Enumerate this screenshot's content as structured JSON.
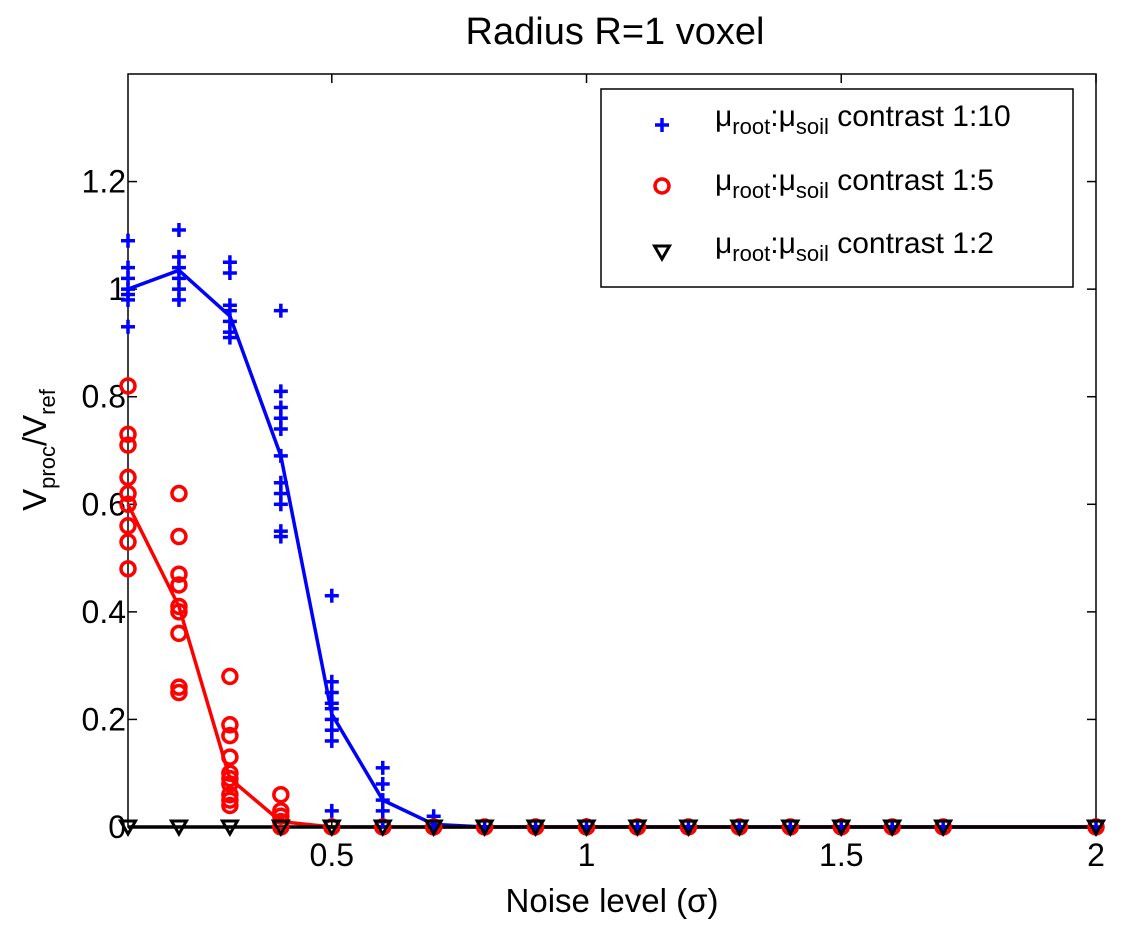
{
  "chart_data": {
    "type": "scatter",
    "title": "Radius R=1 voxel",
    "xlabel": "Noise level (σ)",
    "ylabel": {
      "v1": "V",
      "v1_sub": "proc",
      "sep": "/",
      "v2": "V",
      "v2_sub": "ref"
    },
    "xlim": [
      0.1,
      2.0
    ],
    "ylim": [
      0,
      1.4
    ],
    "xticks": [
      0.5,
      1,
      1.5,
      2
    ],
    "xtick_labels": [
      "0.5",
      "1",
      "1.5",
      "2"
    ],
    "yticks": [
      0,
      0.2,
      0.4,
      0.6,
      0.8,
      1,
      1.2
    ],
    "ytick_labels": [
      "0",
      "0.2",
      "0.4",
      "0.6",
      "0.8",
      "1",
      "1.2"
    ],
    "grid": false,
    "legend_position": "top-right",
    "series": [
      {
        "name": "μroot:μsoil contrast 1:10",
        "legend": {
          "mu1": "μ",
          "sub1": "root",
          "sep": ":",
          "mu2": "μ",
          "sub2": "soil",
          "rest": " contrast 1:10"
        },
        "marker": "plus",
        "color": "#0000ff",
        "points": [
          [
            0.1,
            1.09
          ],
          [
            0.1,
            1.04
          ],
          [
            0.1,
            1.02
          ],
          [
            0.1,
            1.0
          ],
          [
            0.1,
            0.99
          ],
          [
            0.1,
            0.98
          ],
          [
            0.1,
            0.93
          ],
          [
            0.2,
            1.11
          ],
          [
            0.2,
            1.06
          ],
          [
            0.2,
            1.04
          ],
          [
            0.2,
            1.02
          ],
          [
            0.2,
            1.0
          ],
          [
            0.2,
            0.98
          ],
          [
            0.3,
            1.05
          ],
          [
            0.3,
            1.03
          ],
          [
            0.3,
            0.97
          ],
          [
            0.3,
            0.96
          ],
          [
            0.3,
            0.94
          ],
          [
            0.3,
            0.92
          ],
          [
            0.3,
            0.91
          ],
          [
            0.4,
            0.96
          ],
          [
            0.4,
            0.81
          ],
          [
            0.4,
            0.78
          ],
          [
            0.4,
            0.76
          ],
          [
            0.4,
            0.74
          ],
          [
            0.4,
            0.69
          ],
          [
            0.4,
            0.64
          ],
          [
            0.4,
            0.62
          ],
          [
            0.4,
            0.6
          ],
          [
            0.4,
            0.55
          ],
          [
            0.4,
            0.54
          ],
          [
            0.5,
            0.43
          ],
          [
            0.5,
            0.27
          ],
          [
            0.5,
            0.25
          ],
          [
            0.5,
            0.23
          ],
          [
            0.5,
            0.22
          ],
          [
            0.5,
            0.2
          ],
          [
            0.5,
            0.18
          ],
          [
            0.5,
            0.16
          ],
          [
            0.5,
            0.03
          ],
          [
            0.6,
            0.11
          ],
          [
            0.6,
            0.08
          ],
          [
            0.6,
            0.05
          ],
          [
            0.6,
            0.03
          ],
          [
            0.6,
            0.01
          ],
          [
            0.7,
            0.02
          ],
          [
            0.7,
            0.01
          ],
          [
            0.7,
            0.0
          ],
          [
            0.8,
            0.0
          ],
          [
            0.9,
            0.0
          ],
          [
            1.0,
            0.0
          ],
          [
            1.1,
            0.0
          ],
          [
            1.2,
            0.0
          ],
          [
            1.3,
            0.0
          ],
          [
            1.4,
            0.0
          ],
          [
            1.5,
            0.0
          ],
          [
            1.6,
            0.0
          ],
          [
            1.7,
            0.0
          ],
          [
            2.0,
            0.0
          ]
        ],
        "mean_line": [
          [
            0.1,
            1.0
          ],
          [
            0.2,
            1.035
          ],
          [
            0.3,
            0.95
          ],
          [
            0.4,
            0.69
          ],
          [
            0.5,
            0.21
          ],
          [
            0.6,
            0.05
          ],
          [
            0.7,
            0.005
          ],
          [
            0.8,
            0.0
          ],
          [
            2.0,
            0.0
          ]
        ]
      },
      {
        "name": "μroot:μsoil contrast 1:5",
        "legend": {
          "mu1": "μ",
          "sub1": "root",
          "sep": ":",
          "mu2": "μ",
          "sub2": "soil",
          "rest": " contrast 1:5"
        },
        "marker": "circle",
        "color": "#ff0000",
        "points": [
          [
            0.1,
            0.82
          ],
          [
            0.1,
            0.73
          ],
          [
            0.1,
            0.71
          ],
          [
            0.1,
            0.65
          ],
          [
            0.1,
            0.62
          ],
          [
            0.1,
            0.6
          ],
          [
            0.1,
            0.56
          ],
          [
            0.1,
            0.53
          ],
          [
            0.1,
            0.48
          ],
          [
            0.2,
            0.62
          ],
          [
            0.2,
            0.54
          ],
          [
            0.2,
            0.47
          ],
          [
            0.2,
            0.45
          ],
          [
            0.2,
            0.41
          ],
          [
            0.2,
            0.4
          ],
          [
            0.2,
            0.36
          ],
          [
            0.2,
            0.26
          ],
          [
            0.2,
            0.25
          ],
          [
            0.3,
            0.28
          ],
          [
            0.3,
            0.19
          ],
          [
            0.3,
            0.17
          ],
          [
            0.3,
            0.13
          ],
          [
            0.3,
            0.1
          ],
          [
            0.3,
            0.09
          ],
          [
            0.3,
            0.08
          ],
          [
            0.3,
            0.06
          ],
          [
            0.3,
            0.05
          ],
          [
            0.3,
            0.04
          ],
          [
            0.4,
            0.06
          ],
          [
            0.4,
            0.03
          ],
          [
            0.4,
            0.02
          ],
          [
            0.4,
            0.01
          ],
          [
            0.4,
            0.0
          ],
          [
            0.5,
            0.0
          ],
          [
            0.6,
            0.0
          ],
          [
            0.7,
            0.0
          ],
          [
            0.8,
            0.0
          ],
          [
            0.9,
            0.0
          ],
          [
            1.0,
            0.0
          ],
          [
            1.1,
            0.0
          ],
          [
            1.2,
            0.0
          ],
          [
            1.3,
            0.0
          ],
          [
            1.4,
            0.0
          ],
          [
            1.5,
            0.0
          ],
          [
            1.6,
            0.0
          ],
          [
            1.7,
            0.0
          ],
          [
            2.0,
            0.0
          ]
        ],
        "mean_line": [
          [
            0.1,
            0.6
          ],
          [
            0.2,
            0.41
          ],
          [
            0.3,
            0.09
          ],
          [
            0.4,
            0.01
          ],
          [
            0.5,
            0.0
          ],
          [
            2.0,
            0.0
          ]
        ]
      },
      {
        "name": "μroot:μsoil contrast 1:2",
        "legend": {
          "mu1": "μ",
          "sub1": "root",
          "sep": ":",
          "mu2": "μ",
          "sub2": "soil",
          "rest": " contrast 1:2"
        },
        "marker": "triangle-down",
        "color": "#000000",
        "points": [
          [
            0.1,
            0.0
          ],
          [
            0.2,
            0.0
          ],
          [
            0.3,
            0.0
          ],
          [
            0.4,
            0.0
          ],
          [
            0.5,
            0.0
          ],
          [
            0.6,
            0.0
          ],
          [
            0.7,
            0.0
          ],
          [
            0.8,
            0.0
          ],
          [
            0.9,
            0.0
          ],
          [
            1.0,
            0.0
          ],
          [
            1.1,
            0.0
          ],
          [
            1.2,
            0.0
          ],
          [
            1.3,
            0.0
          ],
          [
            1.4,
            0.0
          ],
          [
            1.5,
            0.0
          ],
          [
            1.6,
            0.0
          ],
          [
            1.7,
            0.0
          ],
          [
            2.0,
            0.0
          ]
        ],
        "mean_line": [
          [
            0.1,
            0.0
          ],
          [
            2.0,
            0.0
          ]
        ]
      }
    ]
  }
}
